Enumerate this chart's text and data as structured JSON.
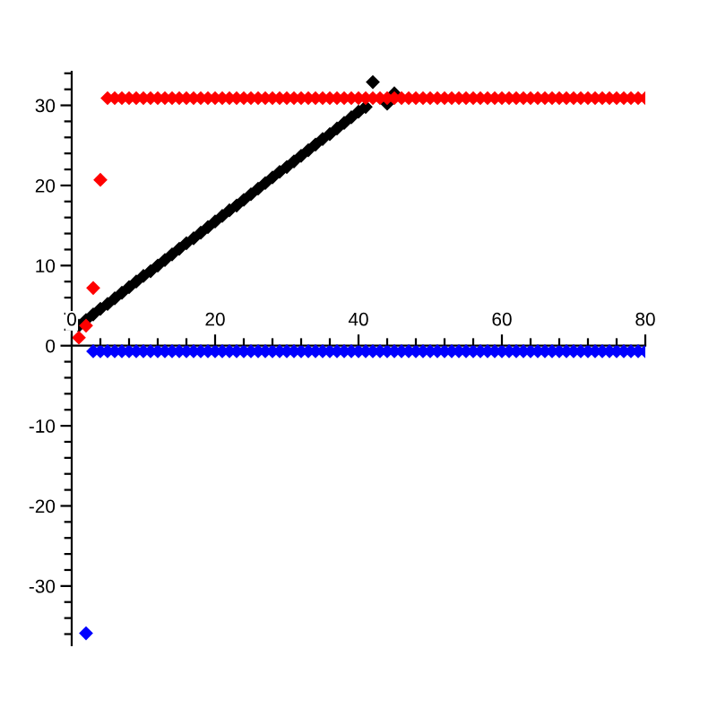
{
  "chart_data": {
    "type": "scatter",
    "marker": "diamond",
    "xlim": [
      0,
      80
    ],
    "ylim": [
      -37.4,
      34.2
    ],
    "xticks": [
      0,
      {
        "value": 4,
        "label": null
      },
      {
        "value": 8,
        "label": null
      },
      {
        "value": 12,
        "label": null
      },
      {
        "value": 16,
        "label": null
      },
      20,
      {
        "value": 24,
        "label": null
      },
      {
        "value": 28,
        "label": null
      },
      {
        "value": 32,
        "label": null
      },
      {
        "value": 36,
        "label": null
      },
      40,
      {
        "value": 44,
        "label": null
      },
      {
        "value": 48,
        "label": null
      },
      {
        "value": 52,
        "label": null
      },
      {
        "value": 56,
        "label": null
      },
      60,
      {
        "value": 64,
        "label": null
      },
      {
        "value": 68,
        "label": null
      },
      {
        "value": 72,
        "label": null
      },
      {
        "value": 76,
        "label": null
      },
      80
    ],
    "yticks": [
      {
        "value": -36,
        "label": null
      },
      {
        "value": -34,
        "label": null
      },
      {
        "value": -32,
        "label": null
      },
      {
        "value": -30,
        "label": "-30"
      },
      {
        "value": -28,
        "label": null
      },
      {
        "value": -26,
        "label": null
      },
      {
        "value": -24,
        "label": null
      },
      {
        "value": -22,
        "label": null
      },
      {
        "value": -20,
        "label": "-20"
      },
      {
        "value": -18,
        "label": null
      },
      {
        "value": -16,
        "label": null
      },
      {
        "value": -14,
        "label": null
      },
      {
        "value": -12,
        "label": null
      },
      {
        "value": -10,
        "label": "-10"
      },
      {
        "value": -8,
        "label": null
      },
      {
        "value": -6,
        "label": null
      },
      {
        "value": -4,
        "label": null
      },
      {
        "value": -2,
        "label": null
      },
      0,
      {
        "value": 2,
        "label": null
      },
      {
        "value": 4,
        "label": null
      },
      {
        "value": 6,
        "label": null
      },
      {
        "value": 8,
        "label": null
      },
      10,
      {
        "value": 12,
        "label": null
      },
      {
        "value": 14,
        "label": null
      },
      {
        "value": 16,
        "label": null
      },
      {
        "value": 18,
        "label": null
      },
      20,
      {
        "value": 22,
        "label": null
      },
      {
        "value": 24,
        "label": null
      },
      {
        "value": 26,
        "label": null
      },
      {
        "value": 28,
        "label": null
      },
      30,
      {
        "value": 32,
        "label": null
      },
      {
        "value": 34,
        "label": null
      }
    ],
    "series": [
      {
        "color": "#000000",
        "x": [
          1,
          2,
          3,
          4,
          5,
          6,
          7,
          8,
          9,
          10,
          11,
          12,
          13,
          14,
          15,
          16,
          17,
          18,
          19,
          20,
          21,
          22,
          23,
          24,
          25,
          26,
          27,
          28,
          29,
          30,
          31,
          32,
          33,
          34,
          35,
          36,
          37,
          38,
          39,
          40,
          41,
          42,
          43,
          44,
          45
        ],
        "values": [
          2.5,
          3.2,
          3.9,
          4.6,
          5.2,
          5.9,
          6.6,
          7.3,
          8.0,
          8.7,
          9.3,
          10.0,
          10.7,
          11.4,
          12.1,
          12.8,
          13.4,
          14.1,
          14.8,
          15.5,
          16.2,
          16.9,
          17.5,
          18.2,
          18.9,
          19.6,
          20.3,
          21.0,
          21.7,
          22.3,
          23.0,
          23.7,
          24.4,
          25.1,
          25.8,
          26.4,
          27.1,
          27.8,
          28.5,
          29.2,
          29.8,
          32.9,
          null,
          30.2,
          31.5
        ]
      },
      {
        "color": "#ff0000",
        "x": [
          1,
          2,
          3,
          4,
          5,
          6,
          7,
          8,
          9,
          10,
          11,
          12,
          13,
          14,
          15,
          16,
          17,
          18,
          19,
          20,
          21,
          22,
          23,
          24,
          25,
          26,
          27,
          28,
          29,
          30,
          31,
          32,
          33,
          34,
          35,
          36,
          37,
          38,
          39,
          40,
          41,
          42,
          43,
          44,
          45,
          46,
          47,
          48,
          49,
          50,
          51,
          52,
          53,
          54,
          55,
          56,
          57,
          58,
          59,
          60,
          61,
          62,
          63,
          64,
          65,
          66,
          67,
          68,
          69,
          70,
          71,
          72,
          73,
          74,
          75,
          76,
          77,
          78,
          79,
          80
        ],
        "values": [
          1.0,
          2.5,
          7.2,
          20.7,
          30.9,
          30.9,
          30.9,
          30.9,
          30.9,
          30.9,
          30.9,
          30.9,
          30.9,
          30.9,
          30.9,
          30.9,
          30.9,
          30.9,
          30.9,
          30.9,
          30.9,
          30.9,
          30.9,
          30.9,
          30.9,
          30.9,
          30.9,
          30.9,
          30.9,
          30.9,
          30.9,
          30.9,
          30.9,
          30.9,
          30.9,
          30.9,
          30.9,
          30.9,
          30.9,
          30.9,
          30.9,
          30.9,
          30.9,
          30.9,
          30.9,
          30.9,
          30.9,
          30.9,
          30.9,
          30.9,
          30.9,
          30.9,
          30.9,
          30.9,
          30.9,
          30.9,
          30.9,
          30.9,
          30.9,
          30.9,
          30.9,
          30.9,
          30.9,
          30.9,
          30.9,
          30.9,
          30.9,
          30.9,
          30.9,
          30.9,
          30.9,
          30.9,
          30.9,
          30.9,
          30.9,
          30.9,
          30.9,
          30.9,
          30.9,
          30.9
        ]
      },
      {
        "color": "#0000ff",
        "x": [
          2,
          3,
          4,
          5,
          6,
          7,
          8,
          9,
          10,
          11,
          12,
          13,
          14,
          15,
          16,
          17,
          18,
          19,
          20,
          21,
          22,
          23,
          24,
          25,
          26,
          27,
          28,
          29,
          30,
          31,
          32,
          33,
          34,
          35,
          36,
          37,
          38,
          39,
          40,
          41,
          42,
          43,
          44,
          45,
          46,
          47,
          48,
          49,
          50,
          51,
          52,
          53,
          54,
          55,
          56,
          57,
          58,
          59,
          60,
          61,
          62,
          63,
          64,
          65,
          66,
          67,
          68,
          69,
          70,
          71,
          72,
          73,
          74,
          75,
          76,
          77,
          78,
          79,
          80
        ],
        "values": [
          -35.9,
          -0.7,
          -0.7,
          -0.7,
          -0.7,
          -0.7,
          -0.7,
          -0.7,
          -0.7,
          -0.7,
          -0.7,
          -0.7,
          -0.7,
          -0.7,
          -0.7,
          -0.7,
          -0.7,
          -0.7,
          -0.7,
          -0.7,
          -0.7,
          -0.7,
          -0.7,
          -0.7,
          -0.7,
          -0.7,
          -0.7,
          -0.7,
          -0.7,
          -0.7,
          -0.7,
          -0.7,
          -0.7,
          -0.7,
          -0.7,
          -0.7,
          -0.7,
          -0.7,
          -0.7,
          -0.7,
          -0.7,
          -0.7,
          -0.7,
          -0.7,
          -0.7,
          -0.7,
          -0.7,
          -0.7,
          -0.7,
          -0.7,
          -0.7,
          -0.7,
          -0.7,
          -0.7,
          -0.7,
          -0.7,
          -0.7,
          -0.7,
          -0.7,
          -0.7,
          -0.7,
          -0.7,
          -0.7,
          -0.7,
          -0.7,
          -0.7,
          -0.7,
          -0.7,
          -0.7,
          -0.7,
          -0.7,
          -0.7,
          -0.7,
          -0.7,
          -0.7,
          -0.7,
          -0.7,
          -0.7,
          -0.7
        ]
      }
    ]
  }
}
